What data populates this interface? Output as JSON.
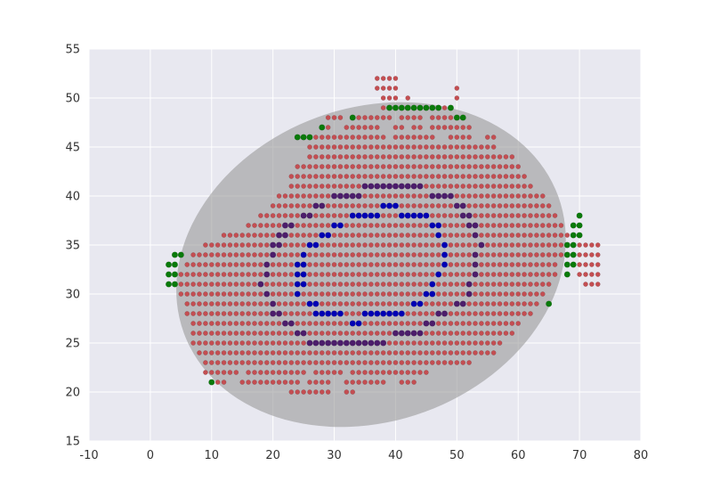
{
  "chart_data": {
    "type": "scatter",
    "title": "",
    "xlabel": "",
    "ylabel": "",
    "xlim": [
      -10,
      80
    ],
    "ylim": [
      15,
      55
    ],
    "xticks": [
      -10,
      0,
      10,
      20,
      30,
      40,
      50,
      60,
      70,
      80
    ],
    "yticks": [
      15,
      20,
      25,
      30,
      35,
      40,
      45,
      50,
      55
    ],
    "grid": true,
    "background": "#e8e8f0",
    "ellipse": {
      "center": [
        36,
        33
      ],
      "width": 65,
      "height": 32,
      "angle_deg": 20,
      "color": "#999999",
      "alpha": 0.6
    },
    "layers": [
      {
        "color": "#c44e52",
        "region": "red-point-cloud",
        "rows": [
          [
            52,
            [
              [
                37,
                40
              ]
            ]
          ],
          [
            51,
            [
              [
                37,
                40
              ],
              [
                50,
                50
              ]
            ]
          ],
          [
            50,
            [
              [
                38,
                40
              ],
              [
                42,
                42
              ],
              [
                50,
                50
              ]
            ]
          ],
          [
            49,
            [
              [
                38,
                40
              ],
              [
                41,
                48
              ]
            ]
          ],
          [
            48,
            [
              [
                29,
                31
              ],
              [
                34,
                39
              ],
              [
                41,
                44
              ],
              [
                46,
                50
              ]
            ]
          ],
          [
            47,
            [
              [
                28,
                29
              ],
              [
                32,
                37
              ],
              [
                40,
                41
              ],
              [
                43,
                44
              ],
              [
                46,
                52
              ]
            ]
          ],
          [
            46,
            [
              [
                27,
                38
              ],
              [
                40,
                46
              ],
              [
                49,
                52
              ],
              [
                55,
                56
              ]
            ]
          ],
          [
            45,
            [
              [
                26,
                56
              ]
            ]
          ],
          [
            44,
            [
              [
                26,
                59
              ]
            ]
          ],
          [
            43,
            [
              [
                24,
                60
              ]
            ]
          ],
          [
            42,
            [
              [
                23,
                61
              ]
            ]
          ],
          [
            41,
            [
              [
                23,
                62
              ]
            ]
          ],
          [
            40,
            [
              [
                21,
                64
              ]
            ]
          ],
          [
            39,
            [
              [
                20,
                65
              ]
            ]
          ],
          [
            38,
            [
              [
                18,
                66
              ]
            ]
          ],
          [
            37,
            [
              [
                16,
                67
              ]
            ]
          ],
          [
            36,
            [
              [
                12,
                68
              ]
            ]
          ],
          [
            35,
            [
              [
                9,
                68
              ],
              [
                70,
                73
              ]
            ]
          ],
          [
            34,
            [
              [
                7,
                68
              ],
              [
                70,
                73
              ]
            ]
          ],
          [
            33,
            [
              [
                6,
                66
              ],
              [
                70,
                73
              ]
            ]
          ],
          [
            32,
            [
              [
                5,
                66
              ],
              [
                70,
                73
              ]
            ]
          ],
          [
            31,
            [
              [
                5,
                65
              ],
              [
                71,
                73
              ]
            ]
          ],
          [
            30,
            [
              [
                5,
                64
              ]
            ]
          ],
          [
            29,
            [
              [
                6,
                63
              ]
            ]
          ],
          [
            28,
            [
              [
                6,
                62
              ]
            ]
          ],
          [
            27,
            [
              [
                7,
                60
              ]
            ]
          ],
          [
            26,
            [
              [
                7,
                59
              ]
            ]
          ],
          [
            25,
            [
              [
                7,
                57
              ]
            ]
          ],
          [
            24,
            [
              [
                8,
                56
              ]
            ]
          ],
          [
            23,
            [
              [
                9,
                52
              ]
            ]
          ],
          [
            22,
            [
              [
                9,
                14
              ],
              [
                16,
                25
              ],
              [
                27,
                31
              ],
              [
                33,
                45
              ]
            ]
          ],
          [
            21,
            [
              [
                11,
                12
              ],
              [
                15,
                24
              ],
              [
                26,
                29
              ],
              [
                32,
                38
              ],
              [
                41,
                43
              ]
            ]
          ],
          [
            20,
            [
              [
                23,
                29
              ],
              [
                32,
                33
              ]
            ]
          ]
        ]
      },
      {
        "color": "#4c1d6b",
        "region": "purple-ring",
        "points": [
          [
            30,
            40
          ],
          [
            31,
            40
          ],
          [
            32,
            40
          ],
          [
            33,
            40
          ],
          [
            34,
            40
          ],
          [
            35,
            41
          ],
          [
            36,
            41
          ],
          [
            37,
            41
          ],
          [
            38,
            41
          ],
          [
            39,
            41
          ],
          [
            40,
            41
          ],
          [
            41,
            41
          ],
          [
            42,
            41
          ],
          [
            43,
            41
          ],
          [
            44,
            41
          ],
          [
            46,
            40
          ],
          [
            47,
            40
          ],
          [
            48,
            40
          ],
          [
            49,
            40
          ],
          [
            27,
            39
          ],
          [
            28,
            39
          ],
          [
            50,
            39
          ],
          [
            51,
            39
          ],
          [
            25,
            38
          ],
          [
            26,
            38
          ],
          [
            51,
            38
          ],
          [
            52,
            38
          ],
          [
            22,
            37
          ],
          [
            23,
            37
          ],
          [
            52,
            37
          ],
          [
            53,
            37
          ],
          [
            21,
            36
          ],
          [
            22,
            36
          ],
          [
            53,
            36
          ],
          [
            20,
            35
          ],
          [
            21,
            35
          ],
          [
            54,
            35
          ],
          [
            20,
            34
          ],
          [
            53,
            34
          ],
          [
            19,
            33
          ],
          [
            53,
            33
          ],
          [
            19,
            32
          ],
          [
            53,
            32
          ],
          [
            18,
            31
          ],
          [
            52,
            31
          ],
          [
            19,
            30
          ],
          [
            52,
            30
          ],
          [
            20,
            29
          ],
          [
            50,
            29
          ],
          [
            51,
            29
          ],
          [
            20,
            28
          ],
          [
            21,
            28
          ],
          [
            47,
            28
          ],
          [
            48,
            28
          ],
          [
            22,
            27
          ],
          [
            23,
            27
          ],
          [
            45,
            27
          ],
          [
            46,
            27
          ],
          [
            24,
            26
          ],
          [
            25,
            26
          ],
          [
            40,
            26
          ],
          [
            41,
            26
          ],
          [
            42,
            26
          ],
          [
            43,
            26
          ],
          [
            44,
            26
          ],
          [
            26,
            25
          ],
          [
            27,
            25
          ],
          [
            28,
            25
          ],
          [
            29,
            25
          ],
          [
            30,
            25
          ],
          [
            31,
            25
          ],
          [
            32,
            25
          ],
          [
            33,
            25
          ],
          [
            34,
            25
          ],
          [
            35,
            25
          ],
          [
            36,
            25
          ],
          [
            37,
            25
          ],
          [
            38,
            25
          ]
        ]
      },
      {
        "color": "#0000b4",
        "region": "blue-ring",
        "points": [
          [
            33,
            38
          ],
          [
            34,
            38
          ],
          [
            35,
            38
          ],
          [
            36,
            38
          ],
          [
            37,
            38
          ],
          [
            38,
            39
          ],
          [
            39,
            39
          ],
          [
            40,
            39
          ],
          [
            41,
            38
          ],
          [
            42,
            38
          ],
          [
            43,
            38
          ],
          [
            44,
            38
          ],
          [
            45,
            38
          ],
          [
            30,
            37
          ],
          [
            31,
            37
          ],
          [
            46,
            37
          ],
          [
            47,
            37
          ],
          [
            28,
            36
          ],
          [
            29,
            36
          ],
          [
            47,
            36
          ],
          [
            26,
            35
          ],
          [
            27,
            35
          ],
          [
            48,
            35
          ],
          [
            25,
            34
          ],
          [
            48,
            34
          ],
          [
            24,
            33
          ],
          [
            25,
            33
          ],
          [
            48,
            33
          ],
          [
            24,
            32
          ],
          [
            25,
            32
          ],
          [
            47,
            32
          ],
          [
            24,
            31
          ],
          [
            25,
            31
          ],
          [
            46,
            31
          ],
          [
            24,
            30
          ],
          [
            45,
            30
          ],
          [
            46,
            30
          ],
          [
            26,
            29
          ],
          [
            27,
            29
          ],
          [
            43,
            29
          ],
          [
            44,
            29
          ],
          [
            27,
            28
          ],
          [
            28,
            28
          ],
          [
            29,
            28
          ],
          [
            30,
            28
          ],
          [
            31,
            28
          ],
          [
            35,
            28
          ],
          [
            36,
            28
          ],
          [
            37,
            28
          ],
          [
            38,
            28
          ],
          [
            39,
            28
          ],
          [
            40,
            28
          ],
          [
            41,
            28
          ],
          [
            33,
            27
          ],
          [
            34,
            27
          ]
        ]
      },
      {
        "color": "#0a7a0a",
        "region": "green-border",
        "points": [
          [
            39,
            49
          ],
          [
            40,
            49
          ],
          [
            41,
            49
          ],
          [
            42,
            49
          ],
          [
            43,
            49
          ],
          [
            44,
            49
          ],
          [
            45,
            49
          ],
          [
            46,
            49
          ],
          [
            47,
            49
          ],
          [
            49,
            49
          ],
          [
            33,
            48
          ],
          [
            50,
            48
          ],
          [
            51,
            48
          ],
          [
            28,
            47
          ],
          [
            24,
            46
          ],
          [
            25,
            46
          ],
          [
            26,
            46
          ],
          [
            70,
            38
          ],
          [
            69,
            37
          ],
          [
            70,
            37
          ],
          [
            69,
            36
          ],
          [
            70,
            36
          ],
          [
            68,
            35
          ],
          [
            69,
            35
          ],
          [
            68,
            34
          ],
          [
            69,
            34
          ],
          [
            68,
            33
          ],
          [
            69,
            33
          ],
          [
            68,
            32
          ],
          [
            4,
            34
          ],
          [
            5,
            34
          ],
          [
            3,
            33
          ],
          [
            4,
            33
          ],
          [
            3,
            32
          ],
          [
            4,
            32
          ],
          [
            3,
            31
          ],
          [
            4,
            31
          ],
          [
            65,
            29
          ],
          [
            10,
            21
          ]
        ]
      }
    ]
  }
}
